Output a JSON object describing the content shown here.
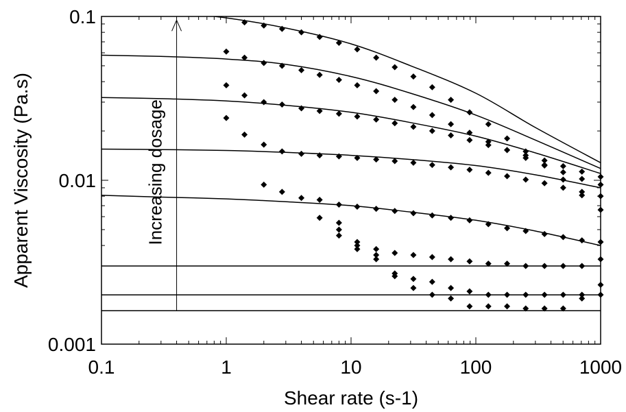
{
  "chart_data": {
    "type": "scatter",
    "title": "",
    "xlabel": "Shear rate (s-1)",
    "ylabel": "Apparent Viscosity (Pa.s)",
    "xscale": "log",
    "yscale": "log",
    "xlim": [
      0.1,
      1000
    ],
    "ylim": [
      0.001,
      0.1
    ],
    "x_tick_labels": [
      "0.1",
      "1",
      "10",
      "100",
      "1000"
    ],
    "y_tick_labels": [
      "0.001",
      "0.01",
      "0.1"
    ],
    "grid": false,
    "legend": "none",
    "marker": "diamond",
    "annotation": {
      "text": "Increasing dosage",
      "arrow_x": 0.4,
      "arrow_from_y": 0.0016,
      "arrow_to_y": 0.095
    },
    "x": [
      1.0,
      1.4,
      2.0,
      2.8,
      4.0,
      5.6,
      8.0,
      11.2,
      15.9,
      22.4,
      31.6,
      44.7,
      63.1,
      89.1,
      126,
      178,
      251,
      355,
      501,
      708,
      1000
    ],
    "series": [
      {
        "values": [
          null,
          0.092,
          0.088,
          0.084,
          0.08,
          0.075,
          0.069,
          0.063,
          0.056,
          0.049,
          0.043,
          0.037,
          0.031,
          0.026,
          0.022,
          0.018,
          0.015,
          0.0123,
          0.0101,
          0.0081,
          0.0066
        ],
        "fit": [
          [
            0.1,
            0.117
          ],
          [
            0.3,
            0.108
          ],
          [
            1,
            0.098
          ],
          [
            3,
            0.085
          ],
          [
            10,
            0.068
          ],
          [
            30,
            0.05
          ],
          [
            100,
            0.034
          ],
          [
            300,
            0.021
          ],
          [
            1000,
            0.0128
          ]
        ]
      },
      {
        "values": [
          0.061,
          0.056,
          0.052,
          0.05,
          0.047,
          0.044,
          0.041,
          0.038,
          0.035,
          0.031,
          0.028,
          0.025,
          0.022,
          0.0195,
          0.0172,
          0.0153,
          0.0137,
          0.0124,
          0.0112,
          0.0102,
          0.0094
        ],
        "fit": [
          [
            0.1,
            0.058
          ],
          [
            0.3,
            0.057
          ],
          [
            1,
            0.055
          ],
          [
            3,
            0.051
          ],
          [
            10,
            0.043
          ],
          [
            30,
            0.034
          ],
          [
            100,
            0.025
          ],
          [
            300,
            0.0176
          ],
          [
            1000,
            0.0118
          ]
        ]
      },
      {
        "values": [
          0.038,
          0.033,
          0.03,
          0.029,
          0.0275,
          0.0265,
          0.0255,
          0.0245,
          0.0235,
          0.0223,
          0.0212,
          0.02,
          0.0188,
          0.0176,
          0.0164,
          0.0153,
          0.0142,
          0.0132,
          0.0122,
          0.0113,
          0.0105
        ],
        "fit": [
          [
            0.1,
            0.032
          ],
          [
            0.3,
            0.0315
          ],
          [
            1,
            0.0305
          ],
          [
            3,
            0.0287
          ],
          [
            10,
            0.026
          ],
          [
            30,
            0.0225
          ],
          [
            100,
            0.0186
          ],
          [
            300,
            0.0147
          ],
          [
            1000,
            0.011
          ]
        ]
      },
      {
        "values": [
          0.024,
          0.019,
          0.0165,
          0.015,
          0.0145,
          0.0142,
          0.014,
          0.0137,
          0.0134,
          0.0131,
          0.0128,
          0.0124,
          0.012,
          0.0116,
          0.0111,
          0.0106,
          0.0101,
          0.0096,
          0.009,
          0.0085,
          0.008
        ],
        "fit": [
          [
            0.1,
            0.0155
          ],
          [
            0.3,
            0.0154
          ],
          [
            1,
            0.0152
          ],
          [
            3,
            0.0148
          ],
          [
            10,
            0.0142
          ],
          [
            30,
            0.0134
          ],
          [
            100,
            0.0123
          ],
          [
            300,
            0.0108
          ],
          [
            1000,
            0.009
          ]
        ]
      },
      {
        "values": [
          null,
          null,
          0.0094,
          0.0085,
          0.0078,
          0.0076,
          0.0071,
          0.0069,
          0.0067,
          0.0065,
          0.0063,
          0.0061,
          0.0059,
          0.0057,
          0.0054,
          0.0051,
          0.0049,
          0.0047,
          0.0045,
          0.0043,
          0.0042
        ],
        "fit": [
          [
            0.1,
            0.0081
          ],
          [
            0.3,
            0.0079
          ],
          [
            1,
            0.0077
          ],
          [
            3,
            0.0074
          ],
          [
            10,
            0.007
          ],
          [
            30,
            0.0064
          ],
          [
            100,
            0.0057
          ],
          [
            300,
            0.0049
          ],
          [
            1000,
            0.004
          ]
        ]
      },
      {
        "values": [
          null,
          null,
          null,
          null,
          null,
          0.0059,
          0.0055,
          0.0042,
          0.0038,
          0.0036,
          0.0035,
          0.0034,
          0.0033,
          0.0032,
          0.0031,
          0.0031,
          0.003,
          0.003,
          0.003,
          0.003,
          0.0033
        ],
        "fit": [
          [
            0.1,
            0.003
          ],
          [
            1000,
            0.003
          ]
        ]
      },
      {
        "values": [
          null,
          null,
          null,
          null,
          null,
          null,
          0.005,
          0.004,
          0.0035,
          0.0027,
          0.0025,
          0.0024,
          0.0022,
          0.0021,
          0.002,
          0.002,
          0.002,
          0.002,
          0.002,
          0.002,
          0.0023
        ],
        "fit": [
          [
            0.1,
            0.002
          ],
          [
            1000,
            0.002
          ]
        ]
      },
      {
        "values": [
          null,
          null,
          null,
          null,
          null,
          null,
          0.0046,
          0.0038,
          0.0033,
          0.0026,
          0.0022,
          0.002,
          0.0019,
          0.0017,
          0.0017,
          0.0017,
          0.00165,
          0.00165,
          0.00165,
          0.0019,
          0.002
        ],
        "fit": [
          [
            0.1,
            0.0016
          ],
          [
            1000,
            0.0016
          ]
        ]
      }
    ]
  }
}
